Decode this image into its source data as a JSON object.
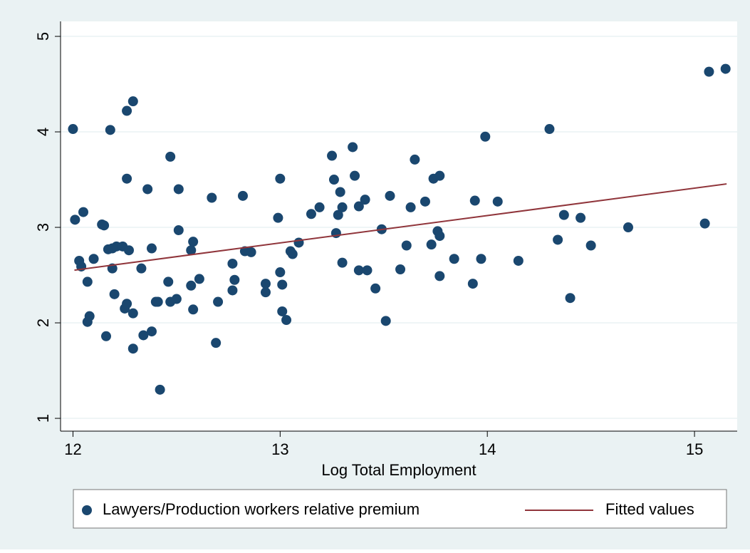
{
  "chart_data": {
    "type": "scatter",
    "x_label": "Log Total Employment",
    "xlim": [
      11.94,
      15.206
    ],
    "ylim": [
      0.866,
      5.157
    ],
    "xticks": [
      12,
      13,
      14,
      15
    ],
    "yticks": [
      1,
      2,
      3,
      4,
      5
    ],
    "grid": true,
    "legend": "bottom",
    "series": [
      {
        "name": "Lawyers/Production workers relative premium",
        "type": "scatter",
        "color": "#1a476f",
        "x": [
          12.0,
          12.01,
          12.05,
          12.03,
          12.04,
          12.07,
          12.08,
          12.07,
          12.1,
          12.14,
          12.15,
          12.16,
          12.18,
          12.17,
          12.19,
          12.21,
          12.19,
          12.2,
          12.24,
          12.26,
          12.29,
          12.26,
          12.27,
          12.25,
          12.26,
          12.29,
          12.29,
          12.33,
          12.34,
          12.36,
          12.38,
          12.38,
          12.4,
          12.41,
          12.42,
          12.46,
          12.47,
          12.47,
          12.5,
          12.51,
          12.51,
          12.57,
          12.57,
          12.58,
          12.58,
          12.61,
          12.67,
          12.7,
          12.69,
          12.77,
          12.78,
          12.77,
          12.82,
          12.83,
          12.86,
          12.93,
          12.93,
          13.0,
          12.99,
          13.0,
          13.01,
          13.01,
          13.03,
          13.05,
          13.06,
          13.09,
          13.15,
          13.19,
          13.25,
          13.26,
          13.28,
          13.27,
          13.29,
          13.3,
          13.3,
          13.35,
          13.36,
          13.38,
          13.41,
          13.38,
          13.42,
          13.46,
          13.49,
          13.51,
          13.53,
          13.58,
          13.61,
          13.63,
          13.65,
          13.7,
          13.74,
          13.77,
          13.73,
          13.76,
          13.77,
          13.77,
          13.84,
          13.94,
          13.93,
          13.97,
          13.99,
          14.05,
          14.15,
          14.3,
          14.34,
          14.37,
          14.4,
          14.45,
          14.5,
          14.68,
          15.05,
          15.07,
          15.15
        ],
        "values": [
          4.03,
          3.08,
          3.16,
          2.65,
          2.59,
          2.43,
          2.07,
          2.01,
          2.67,
          3.03,
          3.02,
          1.86,
          4.02,
          2.77,
          2.78,
          2.8,
          2.57,
          2.3,
          2.8,
          4.22,
          4.32,
          3.51,
          2.76,
          2.15,
          2.2,
          2.1,
          1.73,
          2.57,
          1.87,
          3.4,
          1.91,
          2.78,
          2.22,
          2.22,
          1.3,
          2.43,
          2.22,
          3.74,
          2.25,
          3.4,
          2.97,
          2.39,
          2.76,
          2.85,
          2.14,
          2.46,
          3.31,
          2.22,
          1.79,
          2.62,
          2.45,
          2.34,
          3.33,
          2.75,
          2.74,
          2.41,
          2.32,
          3.51,
          3.1,
          2.53,
          2.4,
          2.12,
          2.03,
          2.75,
          2.72,
          2.84,
          3.14,
          3.21,
          3.75,
          3.5,
          3.13,
          2.94,
          3.37,
          3.21,
          2.63,
          3.84,
          3.54,
          3.22,
          3.29,
          2.55,
          2.55,
          2.36,
          2.98,
          2.02,
          3.33,
          2.56,
          2.81,
          3.21,
          3.71,
          3.27,
          3.51,
          3.54,
          2.82,
          2.96,
          2.91,
          2.49,
          2.67,
          3.28,
          2.41,
          2.67,
          3.95,
          3.27,
          2.65,
          4.03,
          2.87,
          3.13,
          2.26,
          3.1,
          2.81,
          3.0,
          3.04,
          4.63,
          4.66
        ]
      },
      {
        "name": "Fitted values",
        "type": "line",
        "color": "#90353b",
        "x": [
          12.007,
          15.155
        ],
        "values": [
          2.552,
          3.455
        ]
      }
    ]
  }
}
